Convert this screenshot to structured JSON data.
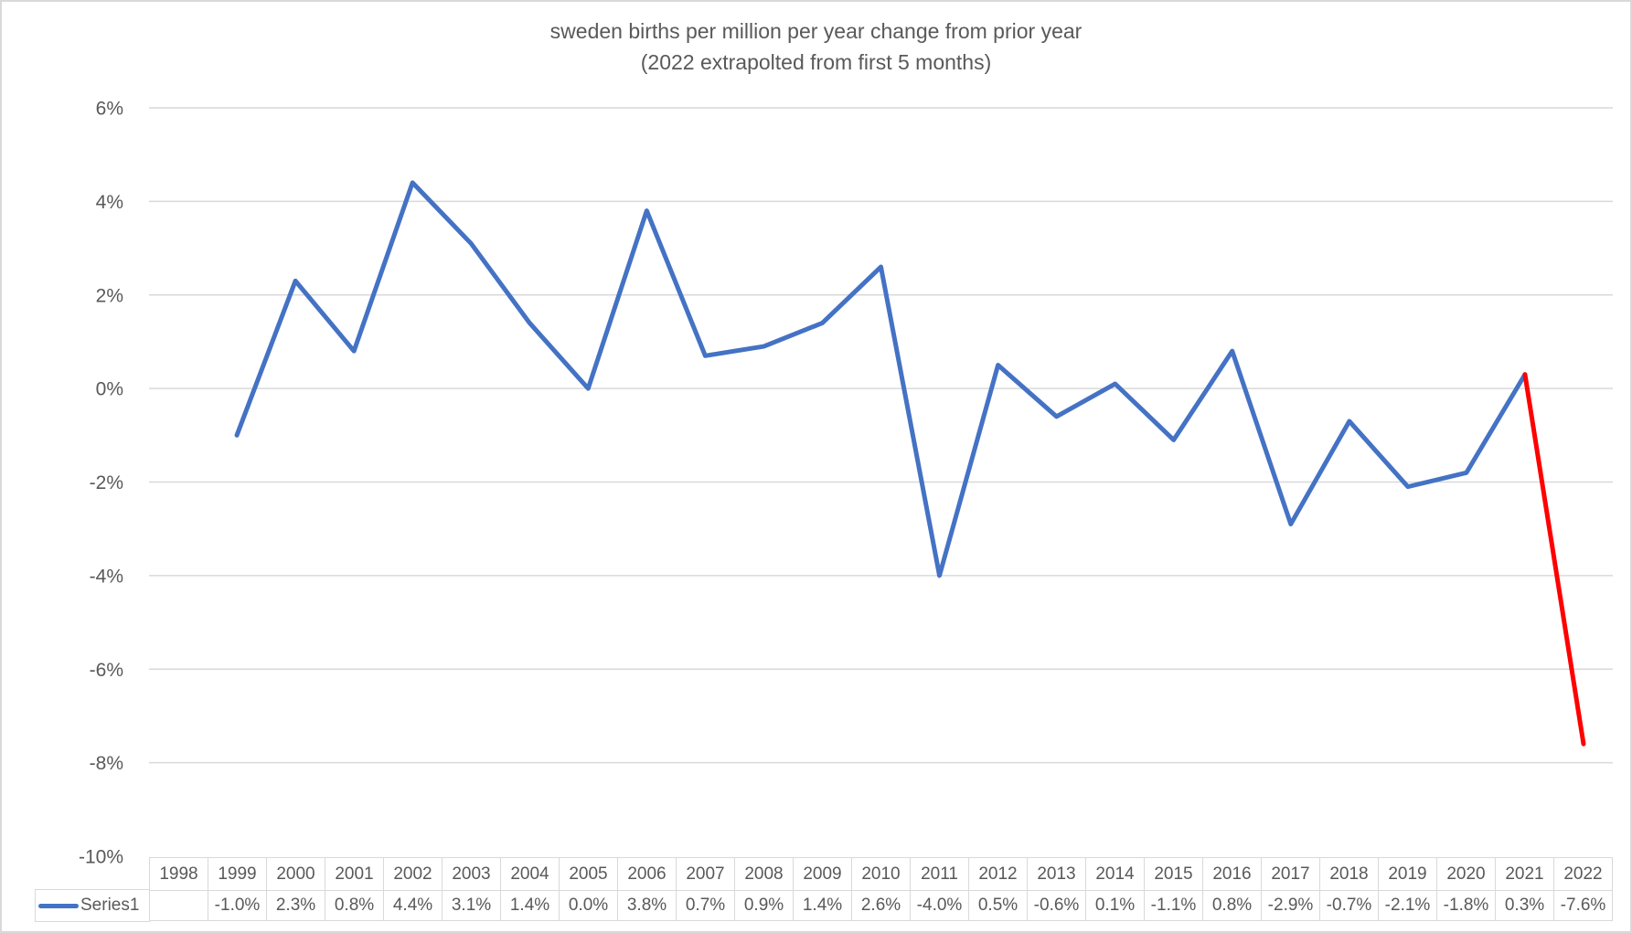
{
  "chart_data": {
    "type": "line",
    "title": "sweden births per million per year change from prior year (2022 extrapolted from first 5 months)",
    "title_line1": "sweden births per million per year change from prior year",
    "title_line2": "(2022 extrapolted from first 5 months)",
    "categories": [
      "1998",
      "1999",
      "2000",
      "2001",
      "2002",
      "2003",
      "2004",
      "2005",
      "2006",
      "2007",
      "2008",
      "2009",
      "2010",
      "2011",
      "2012",
      "2013",
      "2014",
      "2015",
      "2016",
      "2017",
      "2018",
      "2019",
      "2020",
      "2021",
      "2022"
    ],
    "series": [
      {
        "name": "Series1",
        "color": "#4472C4",
        "values": [
          null,
          -1.0,
          2.3,
          0.8,
          4.4,
          3.1,
          1.4,
          0.0,
          3.8,
          0.7,
          0.9,
          1.4,
          2.6,
          -4.0,
          0.5,
          -0.6,
          0.1,
          -1.1,
          0.8,
          -2.9,
          -0.7,
          -2.1,
          -1.8,
          0.3,
          -7.6
        ]
      }
    ],
    "extrapolated_segment": {
      "from": "2021",
      "to": "2022",
      "color": "#FF0000"
    },
    "value_labels": [
      "",
      "-1.0%",
      "2.3%",
      "0.8%",
      "4.4%",
      "3.1%",
      "1.4%",
      "0.0%",
      "3.8%",
      "0.7%",
      "0.9%",
      "1.4%",
      "2.6%",
      "-4.0%",
      "0.5%",
      "-0.6%",
      "0.1%",
      "-1.1%",
      "0.8%",
      "-2.9%",
      "-0.7%",
      "-2.1%",
      "-1.8%",
      "0.3%",
      "-7.6%"
    ],
    "y_axis": {
      "tick_labels": [
        "6%",
        "4%",
        "2%",
        "0%",
        "-2%",
        "-4%",
        "-6%",
        "-8%",
        "-10%"
      ],
      "ylim": [
        -10,
        6
      ],
      "tick_step": 2
    },
    "grid": "horizontal",
    "legend_position": "data-table-left",
    "colors": {
      "gridline": "#D9D9D9",
      "table_border": "#D9D9D9",
      "text": "#595959",
      "background": "#FFFFFF"
    }
  }
}
